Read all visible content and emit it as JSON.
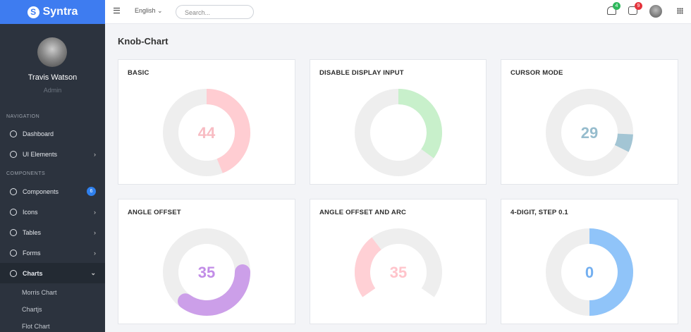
{
  "brand": "Syntra",
  "topbar": {
    "language": "English",
    "search_placeholder": "Search...",
    "notifications": 4,
    "messages": 9
  },
  "sidebar": {
    "user": {
      "name": "Travis Watson",
      "role": "Admin"
    },
    "sections": [
      {
        "title": "NAVIGATION",
        "items": [
          "Dashboard",
          "UI Elements"
        ]
      },
      {
        "title": "COMPONENTS",
        "items": [
          "Components",
          "Icons",
          "Tables",
          "Forms",
          "Charts"
        ],
        "badge": 6,
        "submenu": [
          "Morris Chart",
          "Chartjs",
          "Flot Chart"
        ]
      }
    ]
  },
  "page": {
    "title": "Knob-Chart",
    "knobs": [
      {
        "title": "BASIC",
        "value": 44,
        "min": 0,
        "max": 100,
        "color": "#ffcdd2",
        "text_color": "#f8bcc3"
      },
      {
        "title": "DISABLE DISPLAY INPUT",
        "value": 35,
        "min": 0,
        "max": 100,
        "color": "#c8f0cb",
        "display_input": false
      },
      {
        "title": "CURSOR MODE",
        "value": 29,
        "min": 0,
        "max": 100,
        "color": "#a3c5d4",
        "text_color": "#96bccd",
        "cursor": true
      },
      {
        "title": "ANGLE OFFSET",
        "value": 35,
        "min": 0,
        "max": 100,
        "color": "#cc9fe9",
        "text_color": "#c28de7",
        "angle_offset": 90,
        "line_cap": "round"
      },
      {
        "title": "ANGLE OFFSET AND ARC",
        "value": 35,
        "min": 0,
        "max": 100,
        "color": "#ffd0d5",
        "text_color": "#ffc4cb",
        "angle_offset": -125,
        "angle_arc": 250
      },
      {
        "title": "4-DIGIT, STEP 0.1",
        "value": 0,
        "min": -10000,
        "max": 10000,
        "color": "#90c4f9",
        "text_color": "#73aff0"
      }
    ]
  }
}
